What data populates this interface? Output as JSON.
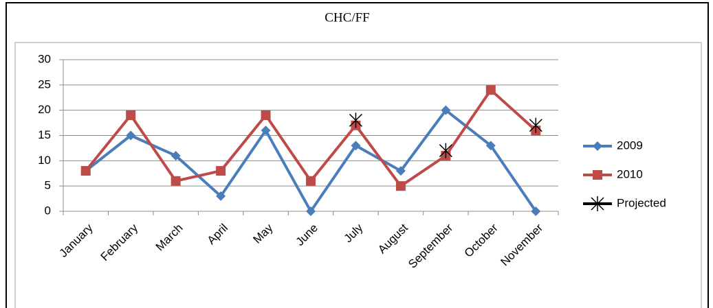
{
  "chart_data": {
    "type": "line",
    "title": "CHC/FF",
    "categories": [
      "January",
      "February",
      "March",
      "April",
      "May",
      "June",
      "July",
      "August",
      "September",
      "October",
      "November"
    ],
    "series": [
      {
        "name": "2009",
        "color": "#4a7ebb",
        "marker": "diamond",
        "values": [
          8,
          15,
          11,
          3,
          16,
          0,
          13,
          8,
          20,
          13,
          0
        ]
      },
      {
        "name": "2010",
        "color": "#be4b48",
        "marker": "square",
        "values": [
          8,
          19,
          6,
          8,
          19,
          6,
          17,
          5,
          11,
          24,
          16
        ]
      },
      {
        "name": "Projected",
        "color": "#000000",
        "marker": "star",
        "values": [
          null,
          null,
          null,
          null,
          null,
          null,
          18,
          null,
          12,
          null,
          17
        ]
      }
    ],
    "ylim": [
      0,
      30
    ],
    "yticks": [
      0,
      5,
      10,
      15,
      20,
      25,
      30
    ],
    "grid": true,
    "legend": "right"
  }
}
